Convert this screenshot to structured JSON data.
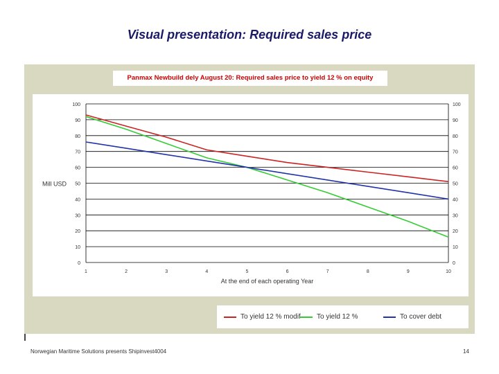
{
  "slide": {
    "title": "Visual presentation: Required sales price",
    "footer": "Norwegian Maritime Solutions presents Shipinvest4004",
    "page_number": "14"
  },
  "colors": {
    "panel": "#d9d9c2",
    "title_text": "#cc0000",
    "grid": "#000000"
  },
  "chart_data": {
    "type": "line",
    "title": "Panmax Newbuild dely August 20: Required sales price to yield 12 % on equity",
    "xlabel": "At the end of each operating Year",
    "ylabel": "Mill USD",
    "x": [
      1,
      2,
      3,
      4,
      5,
      6,
      7,
      8,
      9,
      10
    ],
    "xlim": [
      1,
      10
    ],
    "ylim": [
      0,
      100
    ],
    "yticks": [
      0,
      10,
      20,
      30,
      40,
      50,
      60,
      70,
      80,
      90,
      100
    ],
    "grid": true,
    "legend_position": "bottom-right",
    "series": [
      {
        "name": "To yield 12 % modif",
        "color": "#cc2222",
        "values": [
          93,
          86,
          79,
          71,
          67,
          63,
          60,
          57,
          54,
          51
        ]
      },
      {
        "name": "To yield 12 %",
        "color": "#33cc33",
        "values": [
          92,
          84,
          75,
          66,
          60,
          52,
          44,
          35,
          26,
          16
        ]
      },
      {
        "name": "To cover debt",
        "color": "#2233aa",
        "values": [
          76,
          72,
          68,
          64,
          60,
          56,
          52,
          48,
          44,
          40
        ]
      }
    ]
  }
}
